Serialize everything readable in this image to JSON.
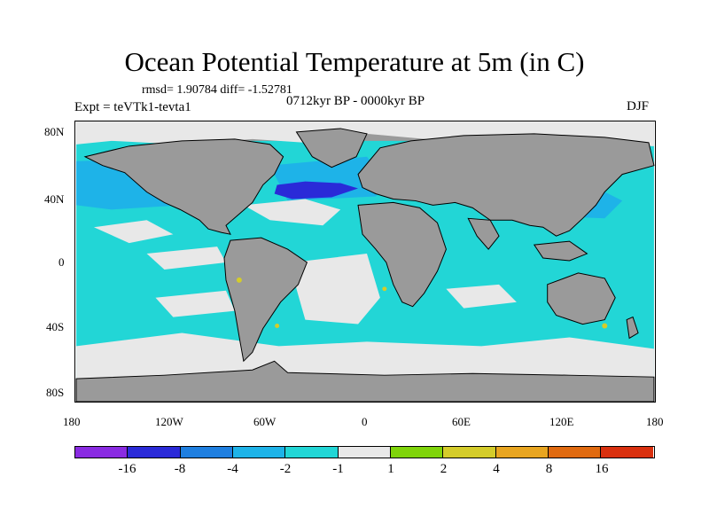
{
  "title": "Ocean Potential Temperature at 5m (in C)",
  "stats": "rmsd= 1.90784 diff= -1.52781",
  "experiment": "Expt = teVTk1-tevta1",
  "period": "0712kyr BP - 0000kyr BP",
  "season": "DJF",
  "lat_ticks": [
    "80N",
    "40N",
    "0",
    "40S",
    "80S"
  ],
  "lon_ticks": [
    "180",
    "120W",
    "60W",
    "0",
    "60E",
    "120E",
    "180"
  ],
  "colorbar": {
    "labels": [
      "-16",
      "-8",
      "-4",
      "-2",
      "-1",
      "1",
      "2",
      "4",
      "8",
      "16"
    ],
    "colors": [
      "#8a2be2",
      "#2a2ad8",
      "#1f7fe0",
      "#1eb3e8",
      "#22d6d6",
      "#e8e8e8",
      "#7fd40a",
      "#d4cc2a",
      "#e8a520",
      "#e06a10",
      "#d9300f"
    ]
  },
  "colors": {
    "land": "#9a9a9a",
    "coast": "#000000"
  }
}
